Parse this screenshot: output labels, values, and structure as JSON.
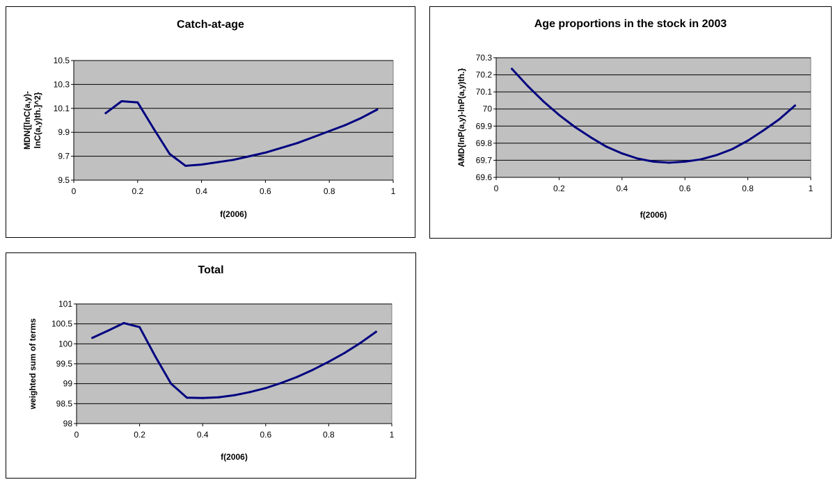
{
  "chart_data": [
    {
      "type": "line",
      "title": "Catch-at-age",
      "xlabel": "f(2006)",
      "ylabel_lines": [
        "MDN{[lnC(a,y)-",
        "lnC(a,y)th.]^2}"
      ],
      "xlim": [
        0,
        1
      ],
      "ylim": [
        9.5,
        10.5
      ],
      "xticks": [
        0,
        0.2,
        0.4,
        0.6,
        0.8,
        1
      ],
      "xtick_labels": [
        "0",
        "0.2",
        "0.4",
        "0.6",
        "0.8",
        "1"
      ],
      "yticks": [
        9.5,
        9.7,
        9.9,
        10.1,
        10.3,
        10.5
      ],
      "ytick_labels": [
        "9.5",
        "9.7",
        "9.9",
        "10.1",
        "10.3",
        "10.5"
      ],
      "grid": true,
      "legend": "none",
      "plot_bg": "#c0c0c0",
      "line_color": "#000080",
      "x": [
        0.1,
        0.15,
        0.2,
        0.25,
        0.3,
        0.35,
        0.4,
        0.45,
        0.5,
        0.55,
        0.6,
        0.65,
        0.7,
        0.75,
        0.8,
        0.85,
        0.9,
        0.95
      ],
      "y": [
        10.06,
        10.16,
        10.15,
        9.93,
        9.72,
        9.62,
        9.63,
        9.65,
        9.67,
        9.7,
        9.73,
        9.77,
        9.81,
        9.86,
        9.91,
        9.96,
        10.02,
        10.09
      ]
    },
    {
      "type": "line",
      "title": "Age proportions in the stock in 2003",
      "xlabel": "f(2006)",
      "ylabel_lines": [
        "AMD{lnP(a,y)-lnP(a,y)th.}"
      ],
      "xlim": [
        0,
        1
      ],
      "ylim": [
        69.6,
        70.3
      ],
      "xticks": [
        0,
        0.2,
        0.4,
        0.6,
        0.8,
        1
      ],
      "xtick_labels": [
        "0",
        "0.2",
        "0.4",
        "0.6",
        "0.8",
        "1"
      ],
      "yticks": [
        69.6,
        69.7,
        69.8,
        69.9,
        70.0,
        70.1,
        70.2,
        70.3
      ],
      "ytick_labels": [
        "69.6",
        "69.7",
        "69.8",
        "69.9",
        "70",
        "70.1",
        "70.2",
        "70.3"
      ],
      "grid": true,
      "legend": "none",
      "plot_bg": "#c0c0c0",
      "line_color": "#000080",
      "x": [
        0.05,
        0.1,
        0.15,
        0.2,
        0.25,
        0.3,
        0.35,
        0.4,
        0.45,
        0.5,
        0.55,
        0.6,
        0.65,
        0.7,
        0.75,
        0.8,
        0.85,
        0.9,
        0.95
      ],
      "y": [
        70.235,
        70.135,
        70.045,
        69.965,
        69.895,
        69.835,
        69.78,
        69.74,
        69.71,
        69.692,
        69.686,
        69.692,
        69.705,
        69.73,
        69.765,
        69.815,
        69.875,
        69.94,
        70.02
      ]
    },
    {
      "type": "line",
      "title": "Total",
      "xlabel": "f(2006)",
      "ylabel_lines": [
        "weighted sum of terms"
      ],
      "xlim": [
        0,
        1
      ],
      "ylim": [
        98,
        101
      ],
      "xticks": [
        0,
        0.2,
        0.4,
        0.6,
        0.8,
        1
      ],
      "xtick_labels": [
        "0",
        "0.2",
        "0.4",
        "0.6",
        "0.8",
        "1"
      ],
      "yticks": [
        98,
        98.5,
        99,
        99.5,
        100,
        100.5,
        101
      ],
      "ytick_labels": [
        "98",
        "98.5",
        "99",
        "99.5",
        "100",
        "100.5",
        "101"
      ],
      "grid": true,
      "legend": "none",
      "plot_bg": "#c0c0c0",
      "line_color": "#000080",
      "x": [
        0.05,
        0.1,
        0.15,
        0.2,
        0.25,
        0.3,
        0.35,
        0.4,
        0.45,
        0.5,
        0.55,
        0.6,
        0.65,
        0.7,
        0.75,
        0.8,
        0.85,
        0.9,
        0.95
      ],
      "y": [
        100.15,
        100.33,
        100.52,
        100.42,
        99.68,
        99.0,
        98.65,
        98.64,
        98.66,
        98.71,
        98.79,
        98.89,
        99.02,
        99.17,
        99.35,
        99.55,
        99.77,
        100.02,
        100.3
      ]
    }
  ]
}
